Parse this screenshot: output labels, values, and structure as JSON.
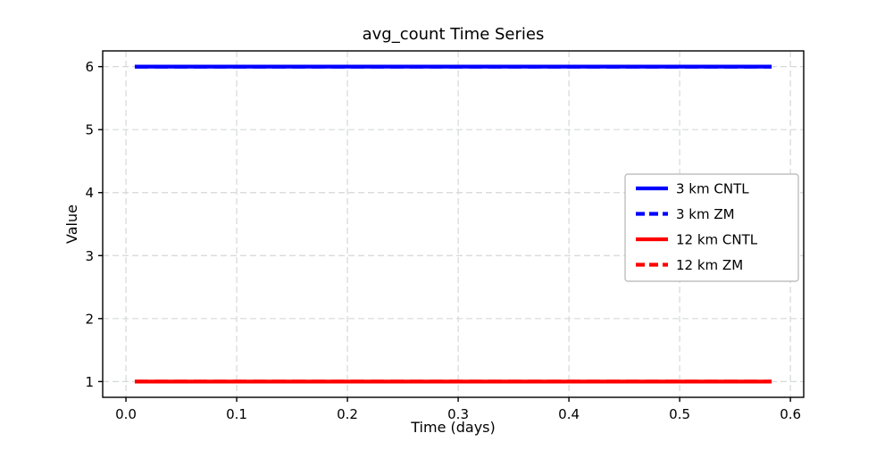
{
  "figure": {
    "title": "avg_count Time Series",
    "xlabel": "Time (days)",
    "ylabel": "Value"
  },
  "chart_data": {
    "type": "line",
    "title": "avg_count Time Series",
    "xlabel": "Time (days)",
    "ylabel": "Value",
    "xlim": [
      -0.021,
      0.612
    ],
    "ylim": [
      0.75,
      6.25
    ],
    "xticks": [
      0.0,
      0.1,
      0.2,
      0.3,
      0.4,
      0.5,
      0.6
    ],
    "xtick_labels": [
      "0.0",
      "0.1",
      "0.2",
      "0.3",
      "0.4",
      "0.5",
      "0.6"
    ],
    "yticks": [
      1,
      2,
      3,
      4,
      5,
      6
    ],
    "ytick_labels": [
      "1",
      "2",
      "3",
      "4",
      "5",
      "6"
    ],
    "grid": true,
    "grid_style": "dashed",
    "legend_position": "center right",
    "series": [
      {
        "name": "3 km CNTL",
        "color": "#0000ff",
        "style": "solid",
        "x": [
          0.008,
          0.583
        ],
        "y": [
          6,
          6
        ]
      },
      {
        "name": "3 km ZM",
        "color": "#0000ff",
        "style": "dashed",
        "x": [
          0.008,
          0.583
        ],
        "y": [
          6,
          6
        ]
      },
      {
        "name": "12 km CNTL",
        "color": "#ff0000",
        "style": "solid",
        "x": [
          0.008,
          0.583
        ],
        "y": [
          1,
          1
        ]
      },
      {
        "name": "12 km ZM",
        "color": "#ff0000",
        "style": "dashed",
        "x": [
          0.008,
          0.583
        ],
        "y": [
          1,
          1
        ]
      }
    ],
    "colors": {
      "grid": "#d5d8d8",
      "axis": "#000000",
      "background": "#ffffff",
      "legend_border": "#b3b3b3"
    }
  }
}
